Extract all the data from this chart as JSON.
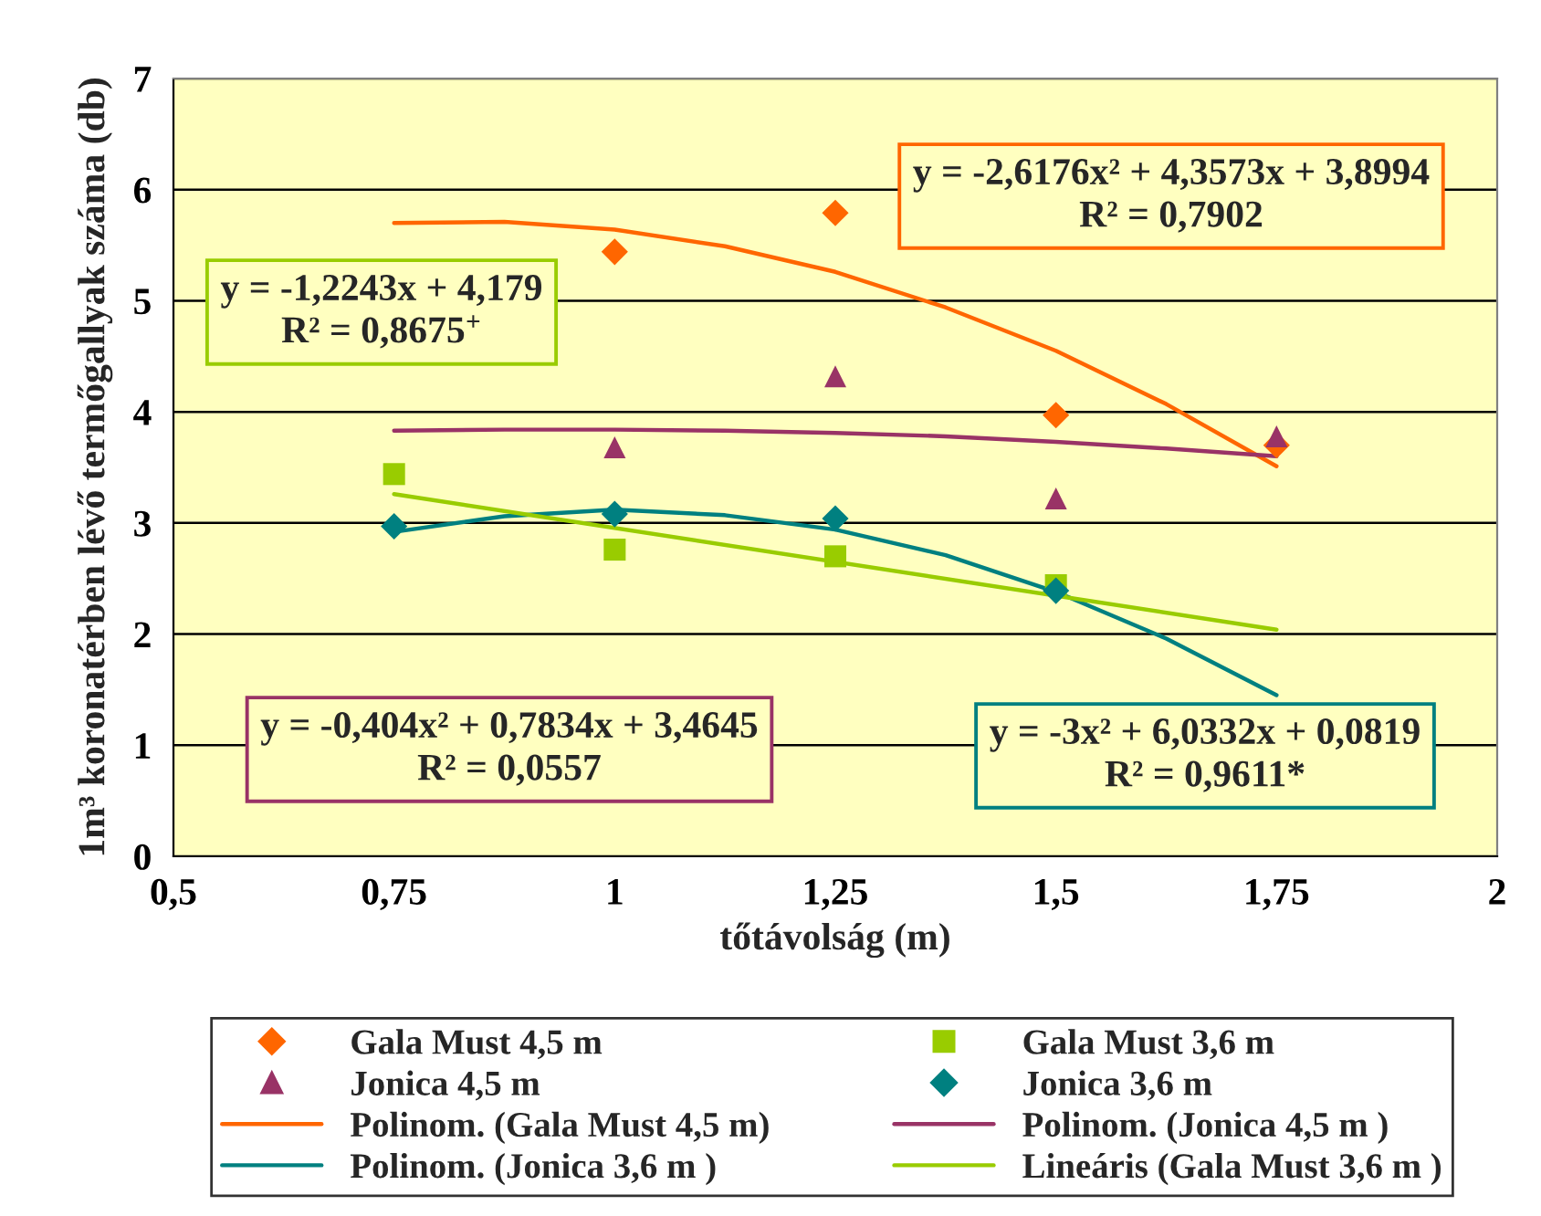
{
  "chart_data": {
    "type": "scatter",
    "xlabel": "tőtávolság (m)",
    "ylabel": "1m³ koronatérben lévő termőgallyak száma (db)",
    "xlim": [
      0.5,
      2
    ],
    "xticks": [
      {
        "value": 0.5,
        "label": "0,5"
      },
      {
        "value": 0.75,
        "label": "0,75"
      },
      1,
      {
        "value": 1.25,
        "label": "1,25"
      },
      {
        "value": 1.5,
        "label": "1,5"
      },
      {
        "value": 1.75,
        "label": "1,75"
      },
      2
    ],
    "ylim": [
      0,
      7
    ],
    "yticks": [
      0,
      1,
      2,
      3,
      4,
      5,
      6,
      7
    ],
    "grid": "y",
    "legend": "bottom",
    "series": [
      {
        "name": "Gala Must 4,5 m",
        "marker": "diamond",
        "color": "#ff6600",
        "x": [
          1,
          1.25,
          1.5,
          1.75
        ],
        "values": [
          5.44,
          5.79,
          3.97,
          3.7
        ]
      },
      {
        "name": "Gala Must 3,6 m",
        "marker": "square",
        "color": "#99cc00",
        "x": [
          0.75,
          1,
          1.25,
          1.5
        ],
        "values": [
          3.44,
          2.76,
          2.7,
          2.44
        ]
      },
      {
        "name": "Jonica 4,5 m",
        "marker": "triangle",
        "color": "#993366",
        "x": [
          1,
          1.25,
          1.5,
          1.75
        ],
        "values": [
          3.68,
          4.32,
          3.22,
          3.78
        ]
      },
      {
        "name": "Jonica 3,6 m",
        "marker": "diamond",
        "color": "#008080",
        "x": [
          0.75,
          1,
          1.25,
          1.5
        ],
        "values": [
          2.97,
          3.08,
          3.04,
          2.39
        ]
      },
      {
        "name": "Polinom. (Gala Must 4,5 m)",
        "type": "line",
        "color": "#ff6600",
        "x": [
          0.75,
          0.875,
          1,
          1.125,
          1.25,
          1.375,
          1.5,
          1.625,
          1.75
        ],
        "values": [
          5.7,
          5.71,
          5.64,
          5.49,
          5.26,
          4.94,
          4.55,
          4.07,
          3.51
        ]
      },
      {
        "name": "Polinom. (Jonica 4,5 m )",
        "type": "line",
        "color": "#993366",
        "x": [
          0.75,
          0.875,
          1,
          1.125,
          1.25,
          1.375,
          1.5,
          1.625,
          1.75
        ],
        "values": [
          3.83,
          3.84,
          3.84,
          3.83,
          3.81,
          3.78,
          3.73,
          3.67,
          3.6
        ]
      },
      {
        "name": "Polinom. (Jonica 3,6 m )",
        "type": "line",
        "color": "#008080",
        "x": [
          0.75,
          0.875,
          1,
          1.125,
          1.25,
          1.375,
          1.5,
          1.625,
          1.75
        ],
        "values": [
          2.92,
          3.06,
          3.12,
          3.07,
          2.94,
          2.71,
          2.38,
          1.96,
          1.45
        ]
      },
      {
        "name": "Lineáris (Gala Must 3,6 m )",
        "type": "line",
        "color": "#99cc00",
        "x": [
          0.75,
          1.75
        ],
        "values": [
          3.26,
          2.04
        ]
      }
    ],
    "annotations": [
      "y = -2,6176x² + 4,3573x + 3,8994\nR² = 0,7902",
      "y = -1,2243x + 4,179\nR² = 0,8675$^{+}$",
      "y = -0,404x² + 0,7834x + 3,4645\nR² = 0,0557",
      "y = -3x² + 6,0332x + 0,0819\nR² = 0,9611*"
    ]
  }
}
